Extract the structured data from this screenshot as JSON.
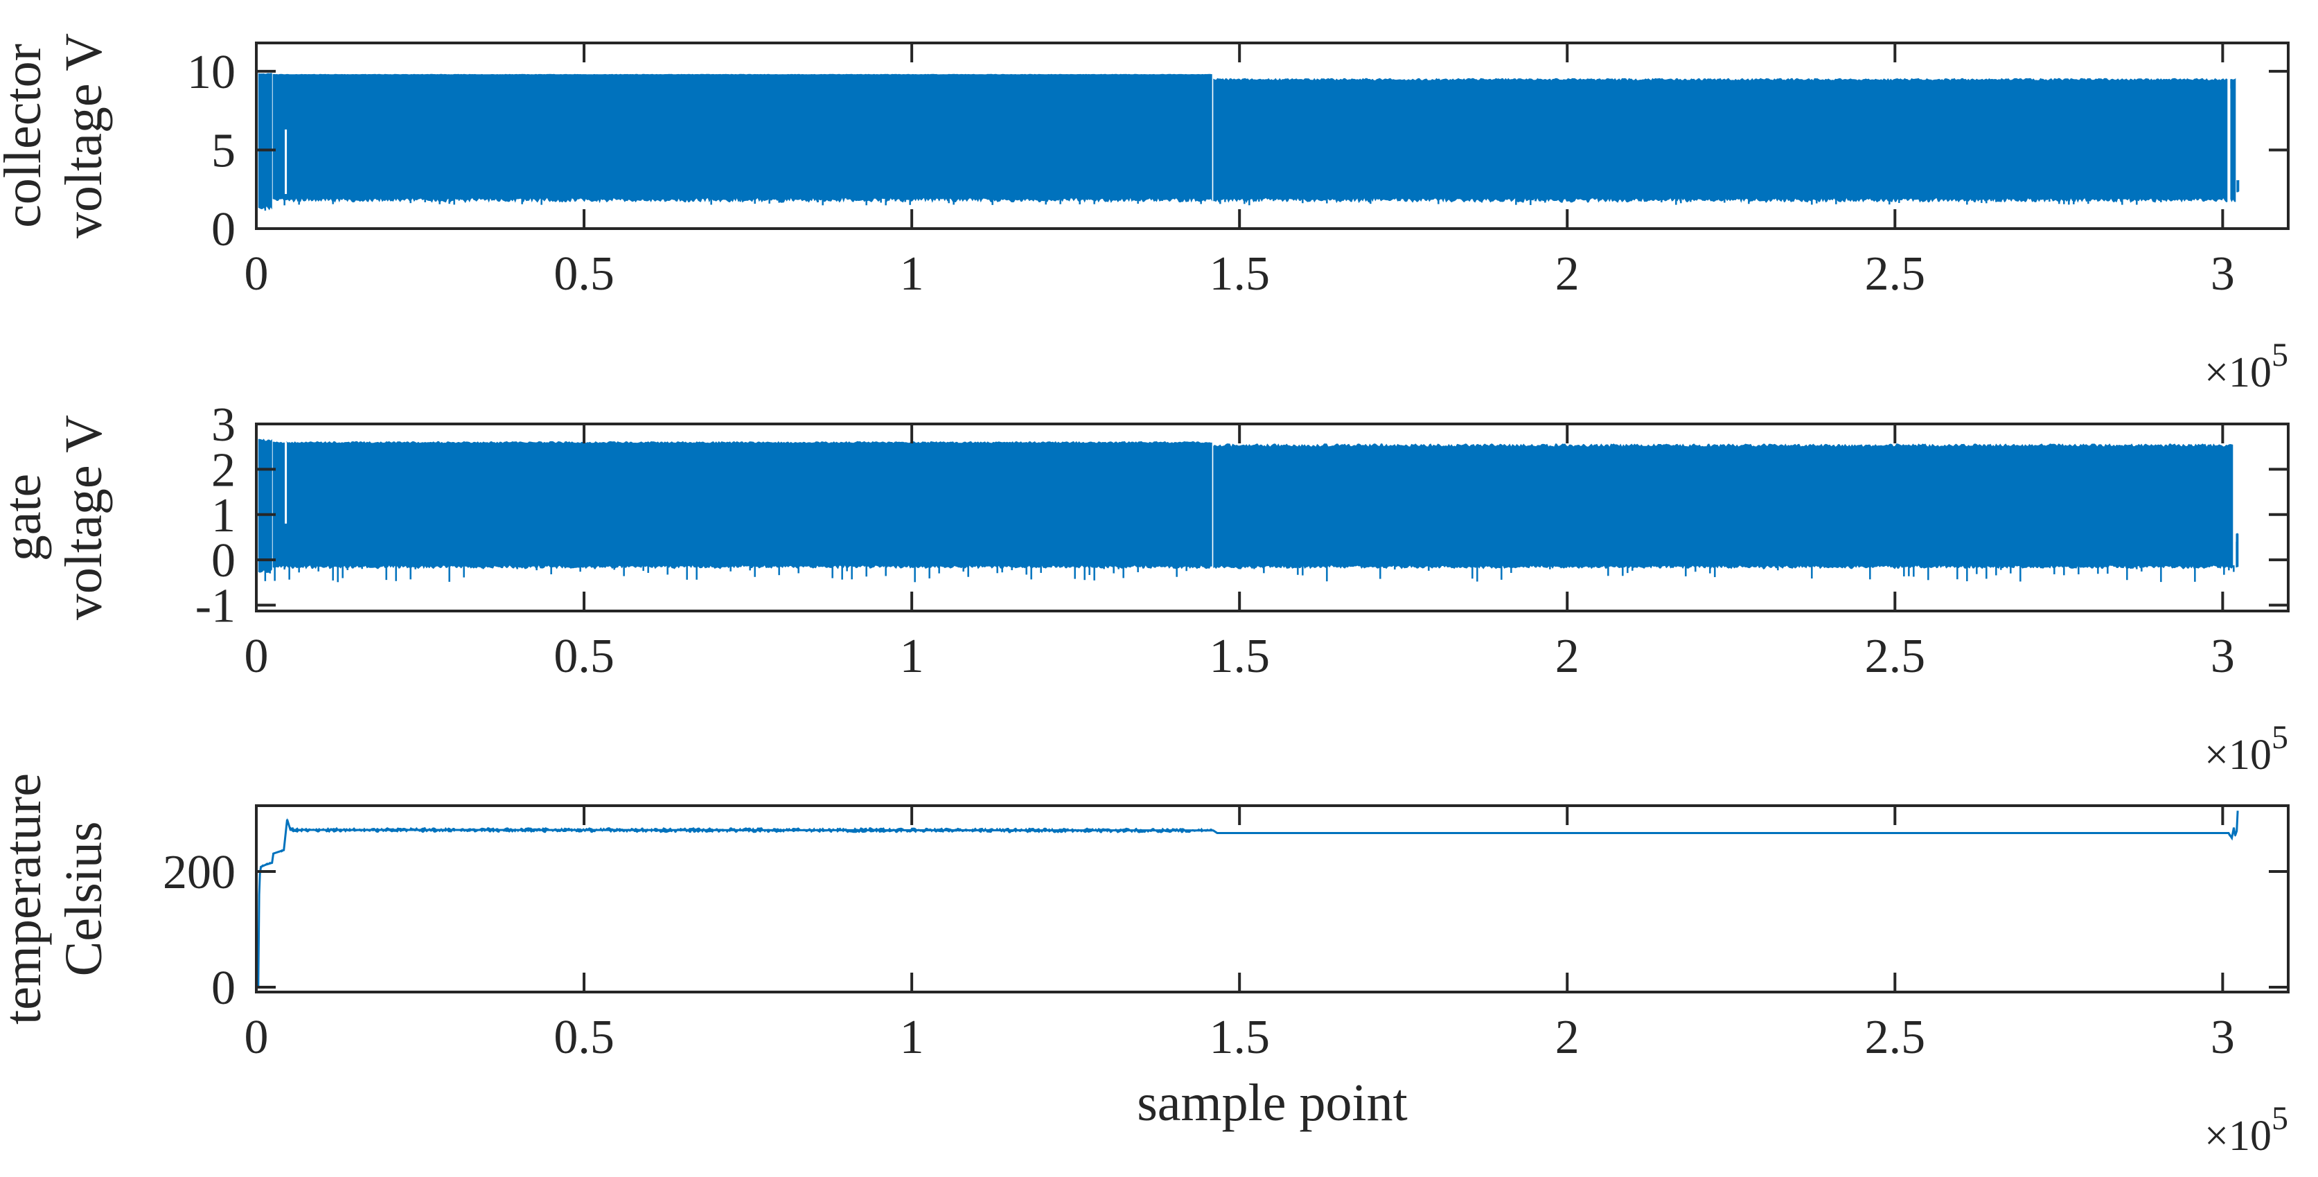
{
  "figure": {
    "background": "#ffffff",
    "axis_color": "#262626",
    "series_color": "#0072BD",
    "x_exponent": {
      "mantissa": "×10",
      "power": "5"
    }
  },
  "chart_data": [
    {
      "type": "line",
      "name": "collector-voltage-subplot",
      "series_name": "collector voltage",
      "render": "envelope-band",
      "ylabel_lines": [
        "collector",
        "voltage V"
      ],
      "xlabel": "",
      "xlim": [
        0,
        310000
      ],
      "ylim": [
        0,
        11.8
      ],
      "xticks": [
        0,
        50000,
        100000,
        150000,
        200000,
        250000,
        300000
      ],
      "xtick_labels": [
        "0",
        "0.5",
        "1",
        "1.5",
        "2",
        "2.5",
        "3"
      ],
      "yticks": [
        0,
        5,
        10
      ],
      "ytick_labels": [
        "0",
        "5",
        "10"
      ],
      "x_exponent": {
        "mantissa": "×10",
        "power": "5"
      },
      "band_segments": [
        {
          "x0": 300,
          "x1": 2500,
          "lo": 1.45,
          "hi": 9.9,
          "noise_lo": 0.3,
          "noise_hi": 0.08
        },
        {
          "x0": 2500,
          "x1": 146000,
          "lo": 1.95,
          "hi": 9.83,
          "noise_lo": 0.25,
          "noise_hi": 0.03
        },
        {
          "x0": 146000,
          "x1": 300900,
          "lo": 1.95,
          "hi": 9.57,
          "noise_lo": 0.25,
          "noise_hi": 0.14
        },
        {
          "x0": 301150,
          "x1": 302100,
          "lo": 1.9,
          "hi": 9.57,
          "noise_lo": 0.2,
          "noise_hi": 0.1
        },
        {
          "x0": 302100,
          "x1": 302700,
          "lo": 2.4,
          "hi": 3.1,
          "noise_lo": 0.05,
          "noise_hi": 0.05
        }
      ],
      "white_gaps": [
        {
          "x": 4500,
          "lo": 2.2,
          "hi": 6.3
        },
        {
          "x": 301000,
          "lo": 1.8,
          "hi": 8.9
        }
      ],
      "bottom_fuzz": {
        "prob": 0.3,
        "max_drop": 0.4
      },
      "description": "dense switching waveform, envelope ~1.9 V to ~9.8 V; upper level steps down ~0.25 V near x=1.46e5; data ends ~3.02e5"
    },
    {
      "type": "line",
      "name": "gate-voltage-subplot",
      "series_name": "gate voltage",
      "render": "envelope-band",
      "ylabel_lines": [
        "gate",
        "voltage V"
      ],
      "xlabel": "",
      "xlim": [
        0,
        310000
      ],
      "ylim": [
        -1.13,
        3.0
      ],
      "xticks": [
        0,
        50000,
        100000,
        150000,
        200000,
        250000,
        300000
      ],
      "xtick_labels": [
        "0",
        "0.5",
        "1",
        "1.5",
        "2",
        "2.5",
        "3"
      ],
      "yticks": [
        -1,
        0,
        1,
        2,
        3
      ],
      "ytick_labels": [
        "-1",
        "0",
        "1",
        "2",
        "3"
      ],
      "x_exponent": {
        "mantissa": "×10",
        "power": "5"
      },
      "band_segments": [
        {
          "x0": 300,
          "x1": 2500,
          "lo": -0.2,
          "hi": 2.68,
          "noise_lo": 0.08,
          "noise_hi": 0.06
        },
        {
          "x0": 2500,
          "x1": 146000,
          "lo": -0.12,
          "hi": 2.62,
          "noise_lo": 0.06,
          "noise_hi": 0.04
        },
        {
          "x0": 146000,
          "x1": 301700,
          "lo": -0.12,
          "hi": 2.57,
          "noise_lo": 0.06,
          "noise_hi": 0.07
        },
        {
          "x0": 302000,
          "x1": 302500,
          "lo": -0.1,
          "hi": 0.6,
          "noise_lo": 0.05,
          "noise_hi": 0.05
        }
      ],
      "white_gaps": [
        {
          "x": 4500,
          "lo": 0.8,
          "hi": 2.6
        },
        {
          "x": 301850,
          "lo": 0.4,
          "hi": 2.4
        }
      ],
      "bottom_fuzz": {
        "prob": 0.25,
        "max_drop": 0.3
      },
      "description": "gate drive waveform, envelope ~0 V to ~2.6 V; data ends ~3.02e5"
    },
    {
      "type": "line",
      "name": "temperature-subplot",
      "series_name": "temperature",
      "render": "noisy-line",
      "ylabel_lines": [
        "temperature",
        "Celsius"
      ],
      "xlabel": "sample point",
      "xlim": [
        0,
        310000
      ],
      "ylim": [
        -8.4,
        313.8
      ],
      "xticks": [
        0,
        50000,
        100000,
        150000,
        200000,
        250000,
        300000
      ],
      "xtick_labels": [
        "0",
        "0.5",
        "1",
        "1.5",
        "2",
        "2.5",
        "3"
      ],
      "yticks": [
        0,
        200
      ],
      "ytick_labels": [
        "0",
        "200"
      ],
      "x_exponent": {
        "mantissa": "×10",
        "power": "5"
      },
      "line_points": [
        [
          300,
          0
        ],
        [
          430,
          160
        ],
        [
          550,
          196
        ],
        [
          700,
          208
        ],
        [
          1500,
          212
        ],
        [
          2400,
          215
        ],
        [
          2600,
          231
        ],
        [
          4200,
          237
        ],
        [
          4400,
          258
        ],
        [
          4700,
          290
        ],
        [
          5200,
          272
        ],
        [
          146000,
          271
        ],
        [
          146600,
          266.5
        ],
        [
          300900,
          266.5
        ],
        [
          301400,
          258
        ],
        [
          301700,
          276
        ],
        [
          301900,
          262
        ],
        [
          302150,
          270
        ],
        [
          302300,
          305
        ]
      ],
      "noise_segments": [
        {
          "x0": 300,
          "x1": 4400,
          "amp": 3.0
        },
        {
          "x0": 4400,
          "x1": 146000,
          "amp": 5.0
        },
        {
          "x0": 146000,
          "x1": 300900,
          "amp": 1.8
        },
        {
          "x0": 300900,
          "x1": 302300,
          "amp": 4.0
        }
      ],
      "description": "temperature rises in steps 0→~215→~237→~270 °C, holds ~270 °C, slightly lower/cleaner after x=1.46e5, end transient spike to ~305 °C"
    }
  ]
}
